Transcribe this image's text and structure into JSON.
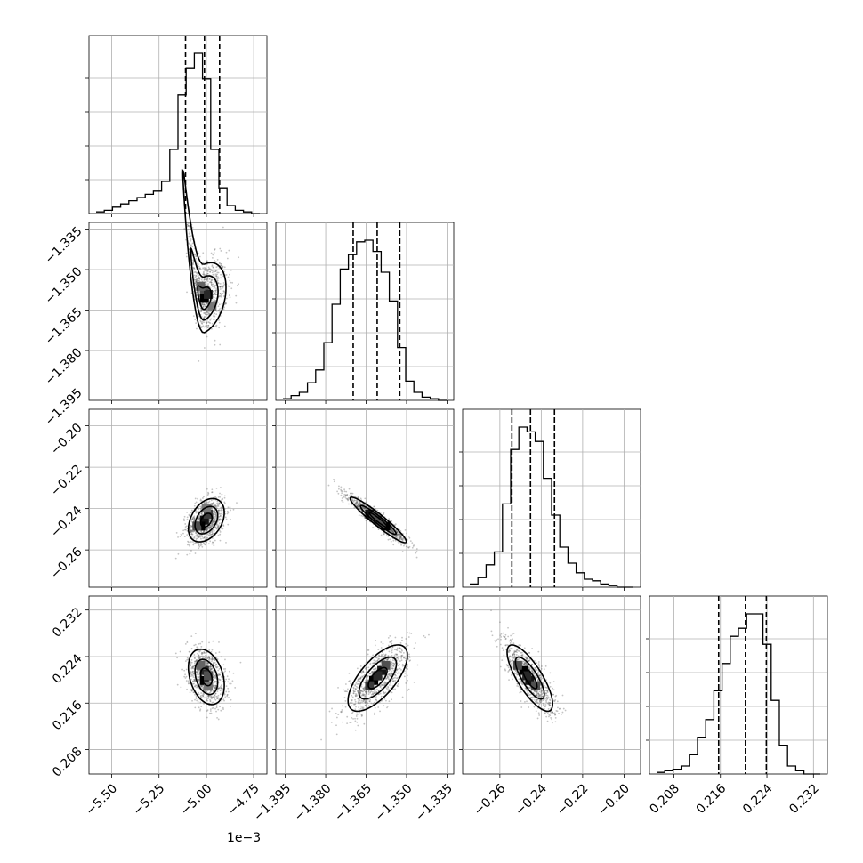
{
  "chart_data": {
    "type": "corner",
    "n_params": 4,
    "grid": true,
    "offset_label": "1e−3",
    "params": [
      {
        "axis_range": [
          -5.62,
          -4.68
        ],
        "ticks": [
          -5.5,
          -5.25,
          -5.0,
          -4.75
        ],
        "tick_labels": [
          "−5.50",
          "−5.25",
          "−5.00",
          "−4.75"
        ],
        "quantiles": [
          -5.11,
          -5.01,
          -4.93
        ],
        "histogram": [
          0.01,
          0.02,
          0.04,
          0.06,
          0.08,
          0.1,
          0.12,
          0.14,
          0.2,
          0.4,
          0.74,
          0.91,
          1.0,
          0.84,
          0.4,
          0.16,
          0.05,
          0.02,
          0.01,
          0.0
        ]
      },
      {
        "axis_range": [
          -1.3985,
          -1.3325
        ],
        "ticks": [
          -1.395,
          -1.38,
          -1.365,
          -1.35,
          -1.335
        ],
        "tick_labels": [
          "−1.395",
          "−1.380",
          "−1.365",
          "−1.350",
          "−1.335"
        ],
        "quantiles": [
          -1.3698,
          -1.3609,
          -1.3525
        ],
        "histogram": [
          0.01,
          0.03,
          0.05,
          0.11,
          0.19,
          0.36,
          0.6,
          0.82,
          0.91,
          0.99,
          1.0,
          0.93,
          0.8,
          0.62,
          0.33,
          0.12,
          0.05,
          0.02,
          0.01,
          0.0
        ]
      },
      {
        "axis_range": [
          -0.278,
          -0.192
        ],
        "ticks": [
          -0.26,
          -0.24,
          -0.22,
          -0.2
        ],
        "tick_labels": [
          "−0.26",
          "−0.24",
          "−0.22",
          "−0.20"
        ],
        "quantiles": [
          -0.2542,
          -0.2452,
          -0.2336
        ],
        "histogram": [
          0.02,
          0.06,
          0.14,
          0.22,
          0.52,
          0.86,
          1.0,
          0.97,
          0.91,
          0.68,
          0.45,
          0.25,
          0.15,
          0.09,
          0.05,
          0.04,
          0.02,
          0.01,
          0.0,
          0.0
        ]
      },
      {
        "axis_range": [
          0.2038,
          0.2344
        ],
        "ticks": [
          0.208,
          0.216,
          0.224,
          0.232
        ],
        "tick_labels": [
          "0.208",
          "0.216",
          "0.224",
          "0.232"
        ],
        "quantiles": [
          0.2157,
          0.2203,
          0.2239
        ],
        "histogram": [
          0.01,
          0.02,
          0.03,
          0.05,
          0.12,
          0.23,
          0.34,
          0.52,
          0.69,
          0.86,
          0.91,
          1.0,
          1.0,
          0.81,
          0.46,
          0.18,
          0.05,
          0.02,
          0.0,
          0.0
        ]
      }
    ],
    "pairs": [
      {
        "x": 0,
        "y": 1,
        "mean": [
          -5.01,
          -1.3607
        ],
        "std": [
          0.06,
          0.007
        ],
        "rho": 0.3,
        "bend": 4.0,
        "bend_pow": 2,
        "cells": [
          [
            -5.01,
            -1.3577,
            0.6
          ],
          [
            -5.01,
            -1.3607,
            1.0
          ],
          [
            -4.99,
            -1.3592,
            0.8
          ],
          [
            -5.03,
            -1.3562,
            0.5
          ],
          [
            -4.97,
            -1.3637,
            0.4
          ]
        ]
      },
      {
        "x": 0,
        "y": 2,
        "mean": [
          -5.0,
          -0.2456
        ],
        "std": [
          0.05,
          0.0055
        ],
        "rho": 0.35,
        "bend": -0.05,
        "bend_pow": 2,
        "cells": [
          [
            -5.01,
            -0.2456,
            0.9
          ],
          [
            -5.03,
            -0.2485,
            1.0
          ],
          [
            -4.99,
            -0.2427,
            0.7
          ],
          [
            -5.05,
            -0.2485,
            0.6
          ],
          [
            -5.0,
            -0.2398,
            0.4
          ]
        ]
      },
      {
        "x": 0,
        "y": 3,
        "mean": [
          -5.0,
          0.2205
        ],
        "std": [
          0.05,
          0.0025
        ],
        "rho": -0.3,
        "bend": 0.04,
        "bend_pow": 2,
        "cells": [
          [
            -5.01,
            0.2199,
            1.0
          ],
          [
            -5.01,
            0.2216,
            0.8
          ],
          [
            -4.99,
            0.2207,
            0.6
          ],
          [
            -5.03,
            0.2225,
            0.5
          ],
          [
            -4.99,
            0.219,
            0.4
          ]
        ]
      },
      {
        "x": 1,
        "y": 2,
        "mean": [
          -1.3605,
          -0.2455
        ],
        "std": [
          0.0055,
          0.0058
        ],
        "rho": -0.95,
        "bend": 0,
        "bend_pow": 2,
        "cells": [
          [
            -1.3637,
            -0.2427,
            0.9
          ],
          [
            -1.3607,
            -0.2456,
            0.8
          ],
          [
            -1.3577,
            -0.2485,
            1.0
          ],
          [
            -1.3622,
            -0.2441,
            0.6
          ],
          [
            -1.3592,
            -0.247,
            0.6
          ]
        ]
      },
      {
        "x": 1,
        "y": 3,
        "mean": [
          -1.3607,
          0.2203
        ],
        "std": [
          0.0058,
          0.003
        ],
        "rho": 0.68,
        "bend": 0,
        "bend_pow": 2,
        "cells": [
          [
            -1.3622,
            0.2199,
            1.0
          ],
          [
            -1.3592,
            0.2216,
            0.9
          ],
          [
            -1.3637,
            0.219,
            0.7
          ],
          [
            -1.3577,
            0.2225,
            0.6
          ],
          [
            -1.3607,
            0.2207,
            0.8
          ]
        ]
      },
      {
        "x": 2,
        "y": 3,
        "mean": [
          -0.2455,
          0.2203
        ],
        "std": [
          0.0058,
          0.003
        ],
        "rho": -0.78,
        "bend": 0,
        "bend_pow": 2,
        "cells": [
          [
            -0.2485,
            0.2216,
            1.0
          ],
          [
            -0.2456,
            0.2199,
            0.9
          ],
          [
            -0.2514,
            0.2225,
            0.6
          ],
          [
            -0.2427,
            0.219,
            0.6
          ],
          [
            -0.247,
            0.2207,
            0.8
          ]
        ]
      }
    ]
  }
}
